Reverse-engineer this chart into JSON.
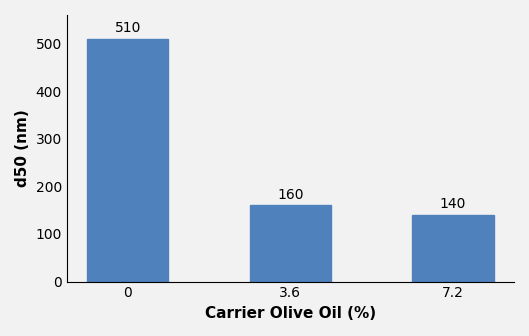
{
  "categories": [
    "0",
    "3.6",
    "7.2"
  ],
  "values": [
    510,
    160,
    140
  ],
  "bar_color": "#4f81bd",
  "xlabel": "Carrier Olive Oil (%)",
  "ylabel": "d50 (nm)",
  "ylim": [
    0,
    560
  ],
  "yticks": [
    0,
    100,
    200,
    300,
    400,
    500
  ],
  "bar_width": 0.5,
  "label_fontsize": 11,
  "tick_fontsize": 10,
  "value_label_fontsize": 10,
  "background_color": "#f2f2f2"
}
